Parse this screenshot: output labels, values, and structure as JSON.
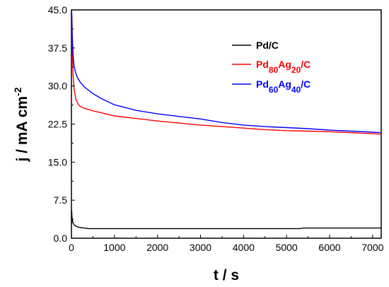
{
  "chart_data": {
    "type": "line",
    "xlabel": "t / s",
    "ylabel": "j / mA cm-2",
    "xlim": [
      0,
      7200
    ],
    "ylim": [
      0,
      45
    ],
    "x_ticks": [
      0,
      1000,
      2000,
      3000,
      4000,
      5000,
      6000,
      7000
    ],
    "x_tick_labels": [
      "0",
      "1000",
      "2000",
      "3000",
      "4000",
      "5000",
      "6000",
      "7000"
    ],
    "y_ticks": [
      0,
      7.5,
      15,
      22.5,
      30,
      37.5,
      45
    ],
    "y_tick_labels": [
      "0.0",
      "7.5",
      "15.0",
      "22.5",
      "30.0",
      "37.5",
      "45.0"
    ],
    "grid": false,
    "legend_position": "top-right",
    "series": [
      {
        "name": "Pd/C",
        "color": "#000000",
        "x": [
          0,
          5,
          15,
          30,
          50,
          80,
          120,
          200,
          300,
          400,
          600,
          1000,
          2000,
          3000,
          4000,
          5000,
          5300,
          5400,
          6000,
          7000,
          7200
        ],
        "y": [
          2.5,
          5.5,
          4.0,
          3.2,
          2.8,
          2.5,
          2.3,
          2.1,
          2.0,
          1.9,
          1.9,
          1.9,
          1.9,
          1.9,
          1.9,
          1.9,
          1.9,
          2.0,
          2.0,
          2.0,
          2.0
        ]
      },
      {
        "name": "Pd80Ag20/C",
        "color": "#ff0000",
        "x": [
          0,
          10,
          20,
          40,
          60,
          100,
          150,
          200,
          300,
          500,
          700,
          1000,
          1500,
          2000,
          2500,
          3000,
          3500,
          4000,
          4500,
          5000,
          5500,
          6000,
          6500,
          7000,
          7200
        ],
        "y": [
          45,
          42,
          37,
          32,
          29.5,
          27.5,
          26.5,
          26.0,
          25.6,
          25.1,
          24.7,
          24.1,
          23.6,
          23.1,
          22.7,
          22.3,
          22.0,
          21.7,
          21.4,
          21.2,
          21.1,
          21.0,
          20.8,
          20.6,
          20.5
        ]
      },
      {
        "name": "Pd60Ag40/C",
        "color": "#0000ff",
        "x": [
          0,
          10,
          20,
          40,
          60,
          100,
          150,
          200,
          300,
          500,
          700,
          1000,
          1500,
          2000,
          2500,
          3000,
          3500,
          4000,
          4500,
          5000,
          5500,
          6000,
          6500,
          7000,
          7200
        ],
        "y": [
          45,
          44,
          40,
          36,
          34,
          32.5,
          31.5,
          30.8,
          29.8,
          28.5,
          27.5,
          26.3,
          25.2,
          24.5,
          24.0,
          23.5,
          22.8,
          22.3,
          22.0,
          21.8,
          21.6,
          21.3,
          21.1,
          20.9,
          20.8
        ]
      }
    ]
  },
  "legend": {
    "items": [
      {
        "color": "#000000",
        "parts": [
          {
            "t": "Pd/C"
          }
        ]
      },
      {
        "color": "#ff0000",
        "parts": [
          {
            "t": "Pd"
          },
          {
            "t": "80",
            "sub": true
          },
          {
            "t": "Ag"
          },
          {
            "t": "20",
            "sub": true
          },
          {
            "t": "/C"
          }
        ]
      },
      {
        "color": "#0000ff",
        "parts": [
          {
            "t": "Pd"
          },
          {
            "t": "60",
            "sub": true
          },
          {
            "t": "Ag"
          },
          {
            "t": "40",
            "sub": true
          },
          {
            "t": "/C"
          }
        ]
      }
    ]
  },
  "ylabel_parts": [
    {
      "t": "j / mA cm"
    },
    {
      "t": "-2",
      "sup": true
    }
  ]
}
